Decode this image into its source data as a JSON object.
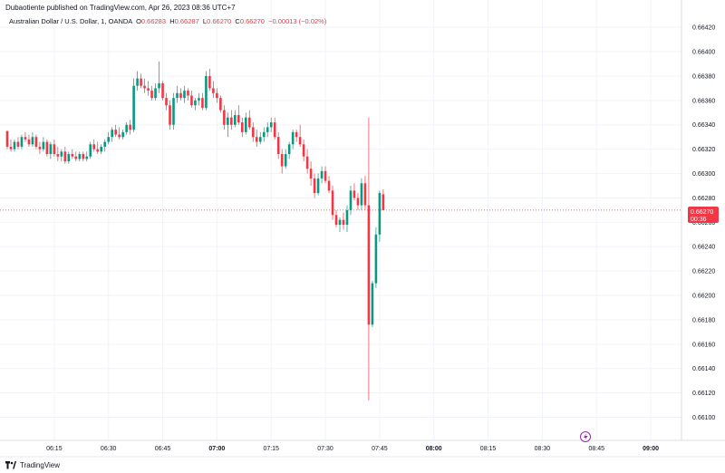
{
  "header": {
    "published": "Dubaotiente published on TradingView.com, Apr 26, 2023 08:36 UTC+7",
    "symbol": "Australian Dollar / U.S. Dollar, 1, OANDA",
    "o_label": "O",
    "o_value": "0.66283",
    "h_label": "H",
    "h_value": "0.66287",
    "l_label": "L",
    "l_value": "0.66270",
    "c_label": "C",
    "c_value": "0.66270",
    "change": "−0.00013 (−0.02%)"
  },
  "price_tag": {
    "price": "0.66270",
    "countdown": "00:36"
  },
  "footer": {
    "brand": "TradingView"
  },
  "colors": {
    "up": "#089981",
    "down": "#f23645",
    "grid": "#f0f3fa",
    "text": "#131722"
  },
  "chart_data": {
    "type": "candlestick",
    "y_ticks": [
      "0.66420",
      "0.66400",
      "0.66380",
      "0.66360",
      "0.66340",
      "0.66320",
      "0.66300",
      "0.66280",
      "0.66260",
      "0.66240",
      "0.66220",
      "0.66200",
      "0.66180",
      "0.66160",
      "0.66140",
      "0.66120",
      "0.66100"
    ],
    "ylim": [
      0.6609,
      0.66432
    ],
    "x_ticks": [
      {
        "label": "06:15",
        "t": 15
      },
      {
        "label": "06:30",
        "t": 30
      },
      {
        "label": "06:45",
        "t": 45
      },
      {
        "label": "07:00",
        "t": 60,
        "bold": true
      },
      {
        "label": "07:15",
        "t": 75
      },
      {
        "label": "07:30",
        "t": 90
      },
      {
        "label": "07:45",
        "t": 105
      },
      {
        "label": "08:00",
        "t": 120,
        "bold": true
      },
      {
        "label": "08:15",
        "t": 135
      },
      {
        "label": "08:30",
        "t": 150
      },
      {
        "label": "08:45",
        "t": 165
      },
      {
        "label": "09:00",
        "t": 180,
        "bold": true
      }
    ],
    "xlim": [
      1.5,
      188.5
    ],
    "last_price": 0.6627,
    "candles": [
      [
        2,
        0.66335,
        0.66335,
        0.6632,
        0.66322
      ],
      [
        3,
        0.66322,
        0.66328,
        0.66318,
        0.6632
      ],
      [
        4,
        0.6632,
        0.66328,
        0.66318,
        0.66326
      ],
      [
        5,
        0.66326,
        0.6633,
        0.6632,
        0.66322
      ],
      [
        6,
        0.66322,
        0.66332,
        0.6632,
        0.6633
      ],
      [
        7,
        0.6633,
        0.66334,
        0.66326,
        0.66328
      ],
      [
        8,
        0.66328,
        0.66332,
        0.66322,
        0.66324
      ],
      [
        9,
        0.66324,
        0.66334,
        0.66322,
        0.6633
      ],
      [
        10,
        0.6633,
        0.66332,
        0.6632,
        0.66322
      ],
      [
        11,
        0.66322,
        0.66326,
        0.66316,
        0.6632
      ],
      [
        12,
        0.6632,
        0.6633,
        0.66318,
        0.66326
      ],
      [
        13,
        0.66326,
        0.66328,
        0.66314,
        0.66316
      ],
      [
        14,
        0.66316,
        0.66326,
        0.66312,
        0.66324
      ],
      [
        15,
        0.66324,
        0.66328,
        0.66314,
        0.66316
      ],
      [
        16,
        0.66316,
        0.66322,
        0.6631,
        0.66314
      ],
      [
        17,
        0.66314,
        0.6632,
        0.6631,
        0.66318
      ],
      [
        18,
        0.66318,
        0.66322,
        0.66308,
        0.6631
      ],
      [
        19,
        0.6631,
        0.66318,
        0.66308,
        0.66316
      ],
      [
        20,
        0.66316,
        0.6632,
        0.66312,
        0.66314
      ],
      [
        21,
        0.66314,
        0.66318,
        0.6631,
        0.66312
      ],
      [
        22,
        0.66312,
        0.66318,
        0.6631,
        0.66316
      ],
      [
        23,
        0.66316,
        0.66318,
        0.6631,
        0.66312
      ],
      [
        24,
        0.66312,
        0.66318,
        0.6631,
        0.66314
      ],
      [
        25,
        0.66314,
        0.66326,
        0.66312,
        0.66324
      ],
      [
        26,
        0.66324,
        0.66328,
        0.66318,
        0.6632
      ],
      [
        27,
        0.6632,
        0.66326,
        0.66316,
        0.66318
      ],
      [
        28,
        0.66318,
        0.66324,
        0.66316,
        0.66322
      ],
      [
        29,
        0.66322,
        0.66328,
        0.66318,
        0.66326
      ],
      [
        30,
        0.66326,
        0.66334,
        0.66324,
        0.6633
      ],
      [
        31,
        0.6633,
        0.66338,
        0.66326,
        0.66336
      ],
      [
        32,
        0.66336,
        0.6634,
        0.6633,
        0.66332
      ],
      [
        33,
        0.66332,
        0.66338,
        0.66328,
        0.6633
      ],
      [
        34,
        0.6633,
        0.66336,
        0.66328,
        0.66334
      ],
      [
        35,
        0.66334,
        0.66342,
        0.66332,
        0.6634
      ],
      [
        36,
        0.6634,
        0.66344,
        0.66332,
        0.66336
      ],
      [
        37,
        0.66336,
        0.66378,
        0.66334,
        0.66372
      ],
      [
        38,
        0.66372,
        0.66384,
        0.66368,
        0.66378
      ],
      [
        39,
        0.66378,
        0.66382,
        0.6637,
        0.66372
      ],
      [
        40,
        0.66372,
        0.66378,
        0.66366,
        0.6637
      ],
      [
        41,
        0.6637,
        0.66376,
        0.66364,
        0.66368
      ],
      [
        42,
        0.66368,
        0.66372,
        0.6636,
        0.66362
      ],
      [
        43,
        0.66362,
        0.66374,
        0.6636,
        0.6637
      ],
      [
        44,
        0.6637,
        0.66392,
        0.66366,
        0.66374
      ],
      [
        45,
        0.66374,
        0.66376,
        0.6636,
        0.66362
      ],
      [
        46,
        0.66362,
        0.66366,
        0.66352,
        0.66356
      ],
      [
        47,
        0.66356,
        0.6636,
        0.66336,
        0.6634
      ],
      [
        48,
        0.6634,
        0.66366,
        0.66336,
        0.66362
      ],
      [
        49,
        0.66362,
        0.66372,
        0.66358,
        0.66366
      ],
      [
        50,
        0.66366,
        0.6637,
        0.6636,
        0.66362
      ],
      [
        51,
        0.66362,
        0.66372,
        0.66358,
        0.66368
      ],
      [
        52,
        0.66368,
        0.6637,
        0.6636,
        0.66364
      ],
      [
        53,
        0.66364,
        0.66368,
        0.66354,
        0.66356
      ],
      [
        54,
        0.66356,
        0.66362,
        0.66352,
        0.6636
      ],
      [
        55,
        0.6636,
        0.66366,
        0.66356,
        0.66362
      ],
      [
        56,
        0.66362,
        0.66366,
        0.66352,
        0.66354
      ],
      [
        57,
        0.66354,
        0.66384,
        0.66352,
        0.6638
      ],
      [
        58,
        0.6638,
        0.66386,
        0.66368,
        0.6637
      ],
      [
        59,
        0.6637,
        0.66376,
        0.66362,
        0.66366
      ],
      [
        60,
        0.66366,
        0.6637,
        0.66358,
        0.66362
      ],
      [
        61,
        0.66362,
        0.66364,
        0.6635,
        0.66352
      ],
      [
        62,
        0.66352,
        0.66356,
        0.66336,
        0.6634
      ],
      [
        63,
        0.6634,
        0.6635,
        0.6633,
        0.66346
      ],
      [
        64,
        0.66346,
        0.66352,
        0.66336,
        0.6634
      ],
      [
        65,
        0.6634,
        0.66352,
        0.66338,
        0.66348
      ],
      [
        66,
        0.66348,
        0.66356,
        0.6634,
        0.66342
      ],
      [
        67,
        0.66342,
        0.66346,
        0.6633,
        0.66334
      ],
      [
        68,
        0.66334,
        0.6635,
        0.66332,
        0.66346
      ],
      [
        69,
        0.66346,
        0.66352,
        0.66336,
        0.66338
      ],
      [
        70,
        0.66338,
        0.66342,
        0.66326,
        0.6633
      ],
      [
        71,
        0.6633,
        0.66336,
        0.66322,
        0.66326
      ],
      [
        72,
        0.66326,
        0.66334,
        0.66324,
        0.6633
      ],
      [
        73,
        0.6633,
        0.66338,
        0.66326,
        0.66334
      ],
      [
        74,
        0.66334,
        0.66342,
        0.6633,
        0.66338
      ],
      [
        75,
        0.66338,
        0.66346,
        0.66334,
        0.66342
      ],
      [
        76,
        0.66342,
        0.66346,
        0.66328,
        0.6633
      ],
      [
        77,
        0.6633,
        0.66334,
        0.66312,
        0.66316
      ],
      [
        78,
        0.66316,
        0.6632,
        0.663,
        0.66306
      ],
      [
        79,
        0.66306,
        0.6632,
        0.66304,
        0.66316
      ],
      [
        80,
        0.66316,
        0.66326,
        0.66312,
        0.66324
      ],
      [
        81,
        0.66324,
        0.66336,
        0.6632,
        0.66334
      ],
      [
        82,
        0.66334,
        0.66336,
        0.66326,
        0.6633
      ],
      [
        83,
        0.6633,
        0.6634,
        0.66322,
        0.66324
      ],
      [
        84,
        0.66324,
        0.66328,
        0.6631,
        0.66314
      ],
      [
        85,
        0.66314,
        0.6632,
        0.663,
        0.66304
      ],
      [
        86,
        0.66304,
        0.6631,
        0.6629,
        0.66296
      ],
      [
        87,
        0.66296,
        0.663,
        0.6628,
        0.66284
      ],
      [
        88,
        0.66284,
        0.663,
        0.66282,
        0.66296
      ],
      [
        89,
        0.66296,
        0.66306,
        0.66292,
        0.66302
      ],
      [
        90,
        0.66302,
        0.66306,
        0.66292,
        0.66294
      ],
      [
        91,
        0.66294,
        0.66298,
        0.66284,
        0.66286
      ],
      [
        92,
        0.66286,
        0.6629,
        0.66262,
        0.66266
      ],
      [
        93,
        0.66266,
        0.6627,
        0.66256,
        0.66258
      ],
      [
        94,
        0.66258,
        0.66264,
        0.66252,
        0.66262
      ],
      [
        95,
        0.66262,
        0.66268,
        0.66254,
        0.66258
      ],
      [
        96,
        0.66258,
        0.66274,
        0.66252,
        0.6627
      ],
      [
        97,
        0.6627,
        0.6629,
        0.66266,
        0.66286
      ],
      [
        98,
        0.66286,
        0.66292,
        0.66278,
        0.6628
      ],
      [
        99,
        0.6628,
        0.66284,
        0.6627,
        0.66274
      ],
      [
        100,
        0.66274,
        0.66296,
        0.6627,
        0.66292
      ],
      [
        101,
        0.66292,
        0.66298,
        0.6627,
        0.66274
      ],
      [
        102,
        0.66274,
        0.66346,
        0.66114,
        0.66176
      ],
      [
        103,
        0.66176,
        0.66212,
        0.66174,
        0.6621
      ],
      [
        104,
        0.6621,
        0.66256,
        0.66206,
        0.6625
      ],
      [
        105,
        0.6625,
        0.66286,
        0.66244,
        0.66284
      ],
      [
        106,
        0.66283,
        0.66287,
        0.6627,
        0.6627
      ]
    ]
  }
}
